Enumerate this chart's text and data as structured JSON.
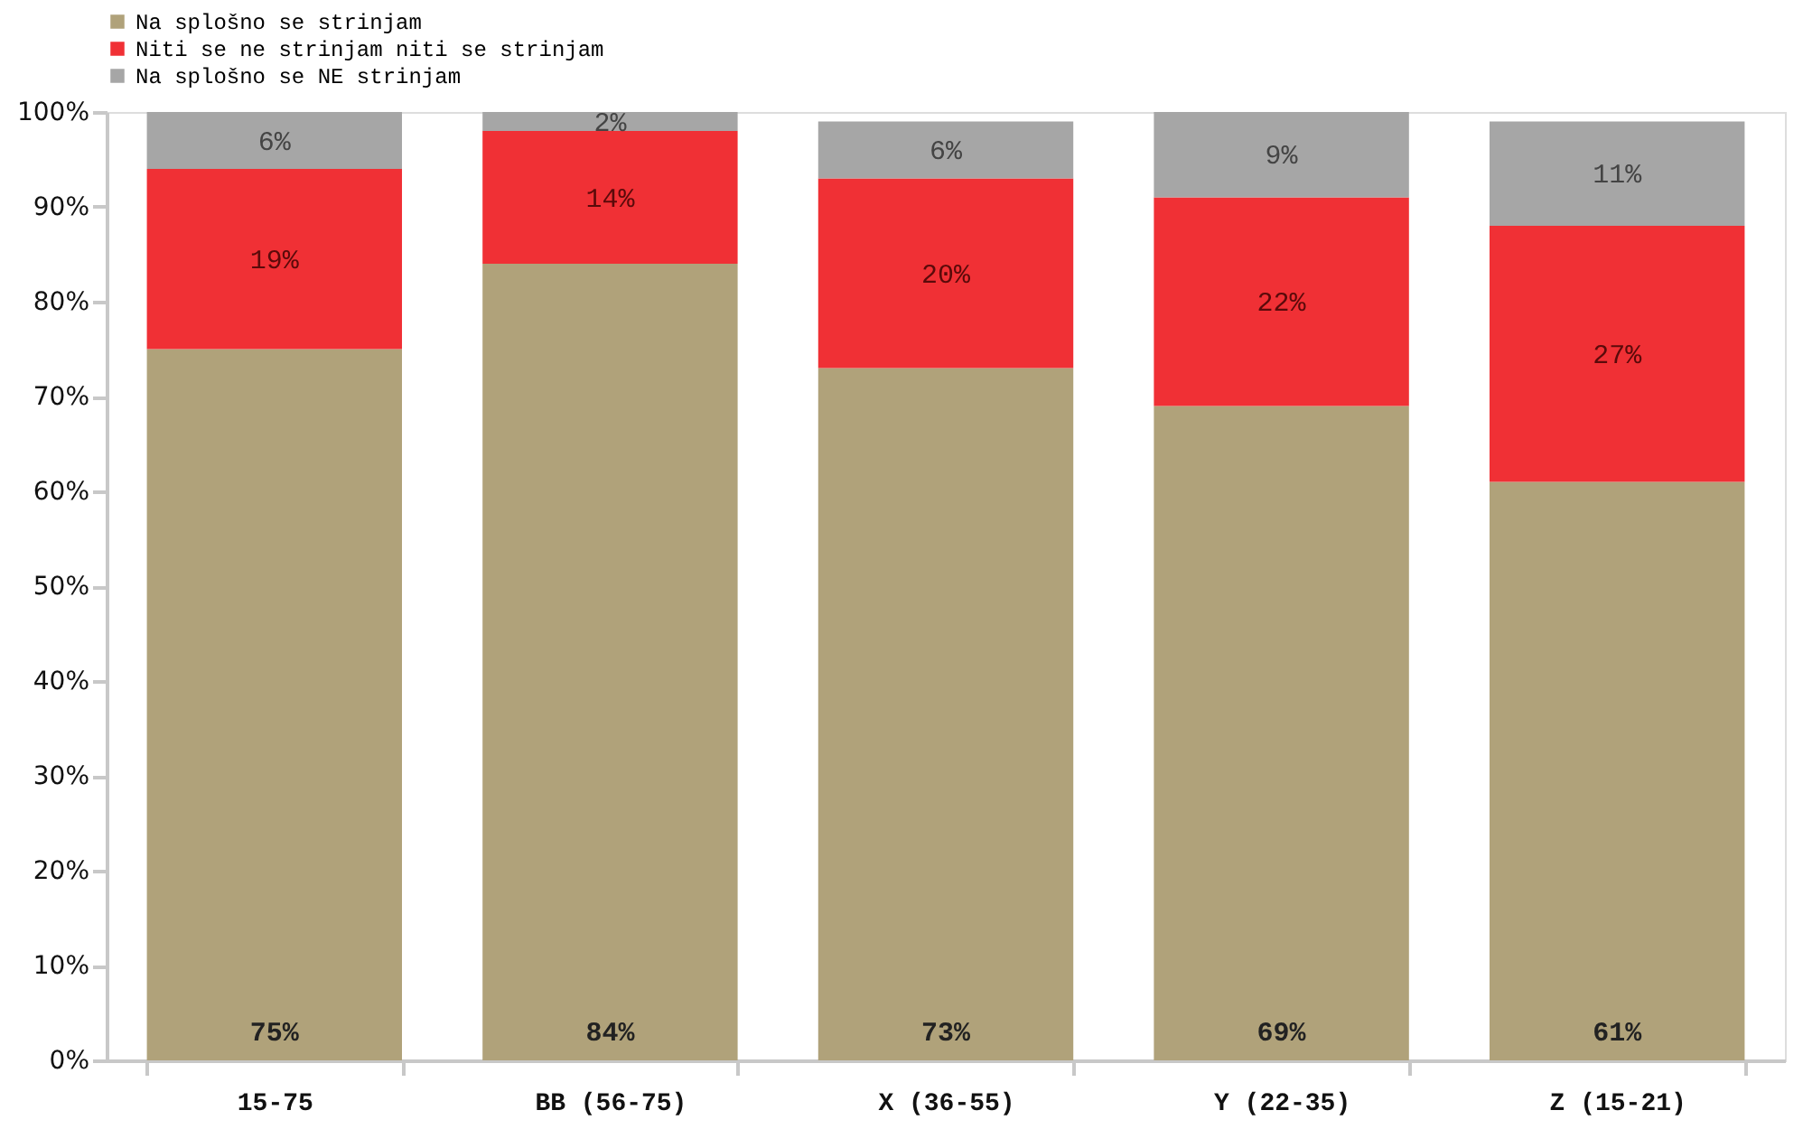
{
  "chart_data": {
    "type": "bar",
    "stacked": true,
    "categories": [
      "15-75",
      "BB (56-75)",
      "X (36-55)",
      "Y (22-35)",
      "Z (15-21)"
    ],
    "series": [
      {
        "name": "Na splošno se strinjam",
        "color": "#b0a27a",
        "values": [
          75,
          84,
          73,
          69,
          61
        ],
        "value_labels": [
          "75%",
          "84%",
          "73%",
          "69%",
          "61%"
        ]
      },
      {
        "name": "Niti se ne strinjam niti se strinjam",
        "color": "#f03035",
        "values": [
          19,
          14,
          20,
          22,
          27
        ],
        "value_labels": [
          "19%",
          "14%",
          "20%",
          "22%",
          "27%"
        ]
      },
      {
        "name": "Na splošno se NE strinjam",
        "color": "#a6a6a6",
        "values": [
          6,
          2,
          6,
          9,
          11
        ],
        "value_labels": [
          "6%",
          "2%",
          "6%",
          "9%",
          "11%"
        ]
      }
    ],
    "ylim": [
      0,
      100
    ],
    "yticks": [
      {
        "value": 0,
        "label": "0%"
      },
      {
        "value": 10,
        "label": "10%"
      },
      {
        "value": 20,
        "label": "20%"
      },
      {
        "value": 30,
        "label": "30%"
      },
      {
        "value": 40,
        "label": "40%"
      },
      {
        "value": 50,
        "label": "50%"
      },
      {
        "value": 60,
        "label": "60%"
      },
      {
        "value": 70,
        "label": "70%"
      },
      {
        "value": 80,
        "label": "80%"
      },
      {
        "value": 90,
        "label": "90%"
      },
      {
        "value": 100,
        "label": "100%"
      }
    ],
    "grid": false,
    "legend": "top"
  }
}
